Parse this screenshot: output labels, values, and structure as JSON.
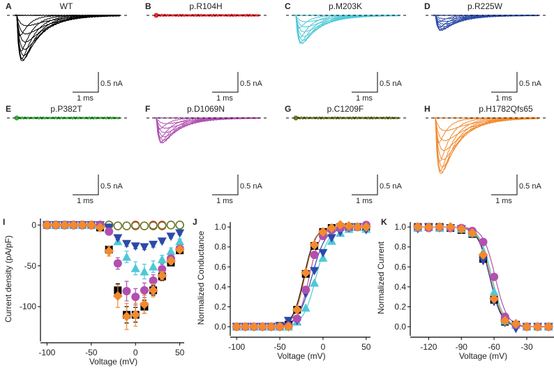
{
  "figure": {
    "trace_panels": [
      {
        "label": "A",
        "title": "WT",
        "color": "#000000",
        "amp": 1.0
      },
      {
        "label": "B",
        "title": "p.R104H",
        "color": "#e8262b",
        "amp": 0.0
      },
      {
        "label": "C",
        "title": "p.M203K",
        "color": "#4ec8d8",
        "amp": 0.62
      },
      {
        "label": "D",
        "title": "p.R225W",
        "color": "#2b4aa8",
        "amp": 0.33
      },
      {
        "label": "E",
        "title": "p.P382T",
        "color": "#3aa83a",
        "amp": 0.0
      },
      {
        "label": "F",
        "title": "p.D1069N",
        "color": "#b050b0",
        "amp": 0.55
      },
      {
        "label": "G",
        "title": "p.C1209F",
        "color": "#6b7a2a",
        "amp": 0.0
      },
      {
        "label": "H",
        "title": "p.H1782Qfs65",
        "color": "#f28a2e",
        "amp": 1.22
      }
    ],
    "scale_bar": {
      "current": "0.5 nA",
      "time": "1 ms"
    }
  },
  "chart_data": [
    {
      "panel": "I",
      "type": "scatter",
      "title": "",
      "xlabel": "Voltage (mV)",
      "ylabel": "Current density (pA/pF)",
      "xlim": [
        -105,
        55
      ],
      "ylim": [
        -140,
        8
      ],
      "xticks": [
        -100,
        -50,
        0,
        50
      ],
      "yticks": [
        0,
        -50,
        -100
      ],
      "x": [
        -100,
        -90,
        -80,
        -70,
        -60,
        -50,
        -40,
        -30,
        -20,
        -10,
        0,
        10,
        20,
        30,
        40,
        50
      ],
      "series": [
        {
          "name": "WT",
          "color": "#000000",
          "marker": "square",
          "values": [
            0,
            0,
            0,
            0,
            0,
            0,
            -3,
            -30,
            -80,
            -110,
            -110,
            -100,
            -80,
            -63,
            -46,
            -31
          ],
          "err": [
            0,
            0,
            0,
            0,
            0,
            0,
            2,
            4,
            8,
            10,
            9,
            8,
            6,
            5,
            4,
            3
          ]
        },
        {
          "name": "p.R104H",
          "color": "#e8262b",
          "marker": "circle-open",
          "values": [
            0,
            0,
            0,
            0,
            0,
            0,
            0,
            0,
            -1,
            -1,
            0,
            -1,
            0,
            0,
            0,
            0
          ],
          "err": [
            0,
            0,
            0,
            0,
            0,
            0,
            0,
            0,
            0,
            0,
            0,
            0,
            0,
            0,
            0,
            0
          ]
        },
        {
          "name": "p.P382T",
          "color": "#3aa83a",
          "marker": "circle-open",
          "values": [
            0,
            0,
            0,
            0,
            0,
            0,
            0,
            0,
            -1,
            -1,
            -1,
            -1,
            -1,
            -1,
            0,
            0
          ],
          "err": [
            0,
            0,
            0,
            0,
            0,
            0,
            0,
            0,
            0,
            0,
            0,
            0,
            0,
            0,
            0,
            0
          ]
        },
        {
          "name": "p.C1209F",
          "color": "#6b7a2a",
          "marker": "circle-open",
          "values": [
            0,
            0,
            0,
            0,
            0,
            0,
            0,
            0,
            -1,
            -1,
            -1,
            -1,
            -1,
            -1,
            0,
            0
          ],
          "err": [
            0,
            0,
            0,
            0,
            0,
            0,
            0,
            0,
            0,
            0,
            0,
            0,
            0,
            0,
            0,
            0
          ]
        },
        {
          "name": "p.M203K",
          "color": "#4ec8d8",
          "marker": "triangle-up",
          "values": [
            0,
            0,
            0,
            0,
            0,
            0,
            0,
            -3,
            -20,
            -39,
            -53,
            -57,
            -51,
            -42,
            -32,
            -20
          ],
          "err": [
            0,
            0,
            0,
            0,
            0,
            0,
            0,
            2,
            4,
            7,
            8,
            9,
            7,
            5,
            4,
            3
          ]
        },
        {
          "name": "p.R225W",
          "color": "#2b4aa8",
          "marker": "triangle-down",
          "values": [
            0,
            0,
            0,
            0,
            0,
            0,
            0,
            -3,
            -16,
            -23,
            -26,
            -27,
            -24,
            -20,
            -14,
            -10
          ],
          "err": [
            0,
            0,
            0,
            0,
            0,
            0,
            0,
            1,
            2,
            3,
            3,
            3,
            3,
            2,
            2,
            2
          ]
        },
        {
          "name": "p.D1069N",
          "color": "#b050b0",
          "marker": "circle",
          "values": [
            0,
            0,
            0,
            0,
            0,
            0,
            0,
            -8,
            -47,
            -81,
            -88,
            -80,
            -68,
            -54,
            -41,
            -29
          ],
          "err": [
            0,
            0,
            0,
            0,
            0,
            0,
            0,
            2,
            7,
            12,
            10,
            9,
            7,
            6,
            4,
            3
          ]
        },
        {
          "name": "p.H1782Qfs65",
          "color": "#f28a2e",
          "marker": "diamond",
          "values": [
            0,
            0,
            0,
            0,
            0,
            0,
            -3,
            -32,
            -87,
            -112,
            -110,
            -97,
            -80,
            -62,
            -44,
            -30
          ],
          "err": [
            0,
            0,
            0,
            0,
            0,
            0,
            2,
            6,
            14,
            16,
            14,
            11,
            8,
            5,
            4,
            3
          ]
        }
      ]
    },
    {
      "panel": "J",
      "type": "line",
      "title": "",
      "xlabel": "Voltage (mV)",
      "ylabel": "Normalized Conductance",
      "xlim": [
        -105,
        55
      ],
      "ylim": [
        -0.07,
        1.05
      ],
      "xticks": [
        -100,
        -50,
        0,
        50
      ],
      "yticks": [
        0.0,
        0.2,
        0.4,
        0.6,
        0.8,
        1.0
      ],
      "x": [
        -100,
        -90,
        -80,
        -70,
        -60,
        -50,
        -40,
        -30,
        -20,
        -10,
        0,
        10,
        20,
        30,
        40,
        50
      ],
      "series": [
        {
          "name": "WT",
          "color": "#000000",
          "marker": "square",
          "v_half": -22,
          "slope": 6.5,
          "values": [
            0,
            0,
            0,
            0,
            0,
            0,
            0.02,
            0.17,
            0.53,
            0.81,
            0.95,
            0.99,
            1.0,
            1.0,
            1.0,
            1.0
          ]
        },
        {
          "name": "p.M203K",
          "color": "#4ec8d8",
          "marker": "triangle-up",
          "v_half": -8,
          "slope": 7.5,
          "values": [
            0,
            0,
            0,
            0,
            0,
            0,
            0,
            0.05,
            0.19,
            0.44,
            0.69,
            0.86,
            0.94,
            0.98,
            1.0,
            0.98
          ]
        },
        {
          "name": "p.R225W",
          "color": "#2b4aa8",
          "marker": "triangle-down",
          "v_half": -13,
          "slope": 8,
          "values": [
            0,
            0,
            0,
            0,
            0,
            0.01,
            0.06,
            0.06,
            0.33,
            0.56,
            0.74,
            0.89,
            0.95,
            0.99,
            1.0,
            0.97
          ]
        },
        {
          "name": "p.D1069N",
          "color": "#b050b0",
          "marker": "circle",
          "v_half": -16,
          "slope": 6.5,
          "values": [
            0,
            0,
            0,
            0,
            0,
            0,
            0.01,
            0.08,
            0.37,
            0.72,
            0.91,
            0.97,
            0.99,
            1.0,
            1.0,
            1.02
          ]
        },
        {
          "name": "p.H1782Qfs65",
          "color": "#f28a2e",
          "marker": "diamond",
          "v_half": -21,
          "slope": 6.3,
          "values": [
            0,
            0,
            0,
            0,
            0,
            0,
            0,
            0.17,
            0.54,
            0.82,
            0.95,
            0.99,
            1.02,
            1.01,
            1.0,
            1.0
          ]
        }
      ]
    },
    {
      "panel": "K",
      "type": "line",
      "title": "",
      "xlabel": "Voltage (mV)",
      "ylabel": "Normalized Current",
      "xlim": [
        -135,
        -5
      ],
      "ylim": [
        -0.07,
        1.05
      ],
      "xticks": [
        -120,
        -90,
        -60,
        -30
      ],
      "yticks": [
        0.0,
        0.2,
        0.4,
        0.6,
        0.8,
        1.0
      ],
      "x": [
        -130,
        -120,
        -110,
        -100,
        -90,
        -80,
        -70,
        -60,
        -50,
        -40,
        -30,
        -20,
        -10
      ],
      "series": [
        {
          "name": "WT",
          "color": "#000000",
          "marker": "square",
          "v_half": -64,
          "slope": 5.5,
          "values": [
            1.0,
            1.0,
            1.0,
            0.99,
            0.97,
            0.93,
            0.68,
            0.27,
            0.05,
            0.02,
            0,
            0,
            0
          ]
        },
        {
          "name": "p.M203K",
          "color": "#4ec8d8",
          "marker": "triangle-up",
          "v_half": -62,
          "slope": 5.5,
          "values": [
            0.99,
            1.0,
            0.99,
            1.0,
            0.98,
            0.94,
            0.75,
            0.35,
            0.06,
            0.02,
            0,
            0,
            0
          ]
        },
        {
          "name": "p.R225W",
          "color": "#2b4aa8",
          "marker": "triangle-down",
          "v_half": -64,
          "slope": 5.3,
          "values": [
            0.98,
            1.0,
            0.99,
            0.99,
            0.98,
            0.93,
            0.66,
            0.25,
            0.04,
            -0.02,
            0.0,
            0.0,
            0.0
          ]
        },
        {
          "name": "p.D1069N",
          "color": "#b050b0",
          "marker": "circle",
          "v_half": -59,
          "slope": 5.5,
          "values": [
            1.0,
            0.99,
            1.0,
            0.99,
            0.99,
            0.96,
            0.85,
            0.5,
            0.1,
            0.02,
            0.0,
            0.0,
            0.0
          ]
        },
        {
          "name": "p.H1782Qfs65",
          "color": "#f28a2e",
          "marker": "diamond",
          "v_half": -63,
          "slope": 5.5,
          "values": [
            1.0,
            1.0,
            1.0,
            1.0,
            0.98,
            0.94,
            0.72,
            0.28,
            0.06,
            0.03,
            0.0,
            0.0,
            0.0
          ]
        }
      ]
    }
  ]
}
